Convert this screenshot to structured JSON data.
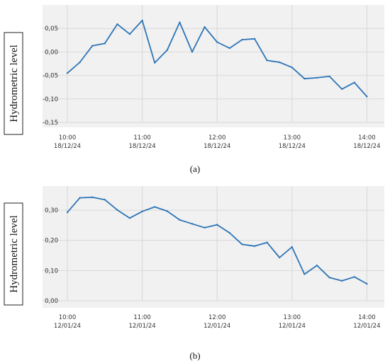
{
  "chart_data": [
    {
      "type": "line",
      "caption": "(a)",
      "ylabel": "Hydrometric level",
      "ylim": [
        -0.15,
        0.1
      ],
      "yticks": [
        "0,05",
        "0,00",
        "-0,05",
        "-0,10",
        "-0,15"
      ],
      "xticks": [
        {
          "time": "10:00",
          "date": "18/12/24"
        },
        {
          "time": "11:00",
          "date": "18/12/24"
        },
        {
          "time": "12:00",
          "date": "18/12/24"
        },
        {
          "time": "13:00",
          "date": "18/12/24"
        },
        {
          "time": "14:00",
          "date": "18/12/24"
        }
      ],
      "xrange": [
        "10:00",
        "14:10"
      ],
      "grid": true,
      "color": "#2e75b6",
      "x": [
        "10:00",
        "10:10",
        "10:20",
        "10:30",
        "10:40",
        "10:50",
        "11:00",
        "11:10",
        "11:20",
        "11:30",
        "11:40",
        "11:50",
        "12:00",
        "12:10",
        "12:20",
        "12:30",
        "12:40",
        "12:50",
        "13:00",
        "13:10",
        "13:20",
        "13:30",
        "13:40",
        "13:50",
        "14:00",
        "14:10"
      ],
      "values": [
        -0.045,
        -0.022,
        0.013,
        0.018,
        0.059,
        0.038,
        0.067,
        -0.023,
        0.004,
        0.063,
        0.0,
        0.053,
        0.021,
        0.008,
        0.026,
        0.028,
        -0.018,
        -0.022,
        -0.033,
        -0.057,
        -0.055,
        -0.052,
        -0.079,
        -0.065,
        -0.095,
        null
      ]
    },
    {
      "type": "line",
      "caption": "(b)",
      "ylabel": "Hydrometric level",
      "ylim": [
        0.0,
        0.38
      ],
      "yticks": [
        "0,30",
        "0,20",
        "0,10",
        "0,00"
      ],
      "xticks": [
        {
          "time": "10:00",
          "date": "12/01/24"
        },
        {
          "time": "11:00",
          "date": "12/01/24"
        },
        {
          "time": "12:00",
          "date": "12/01/24"
        },
        {
          "time": "13:00",
          "date": "12/01/24"
        },
        {
          "time": "14:00",
          "date": "12/01/24"
        }
      ],
      "xrange": [
        "10:00",
        "14:10"
      ],
      "grid": true,
      "color": "#2e75b6",
      "x": [
        "10:00",
        "10:10",
        "10:20",
        "10:30",
        "10:40",
        "10:50",
        "11:00",
        "11:10",
        "11:20",
        "11:30",
        "11:40",
        "11:50",
        "12:00",
        "12:10",
        "12:20",
        "12:30",
        "12:40",
        "12:50",
        "13:00",
        "13:10",
        "13:20",
        "13:30",
        "13:40",
        "13:50",
        "14:00",
        "14:10"
      ],
      "values": [
        0.293,
        0.341,
        0.343,
        0.335,
        0.301,
        0.274,
        0.296,
        0.311,
        0.297,
        0.268,
        0.255,
        0.242,
        0.252,
        0.225,
        0.187,
        0.181,
        0.193,
        0.143,
        0.178,
        0.088,
        0.117,
        0.077,
        0.066,
        0.079,
        0.056,
        null
      ]
    }
  ]
}
